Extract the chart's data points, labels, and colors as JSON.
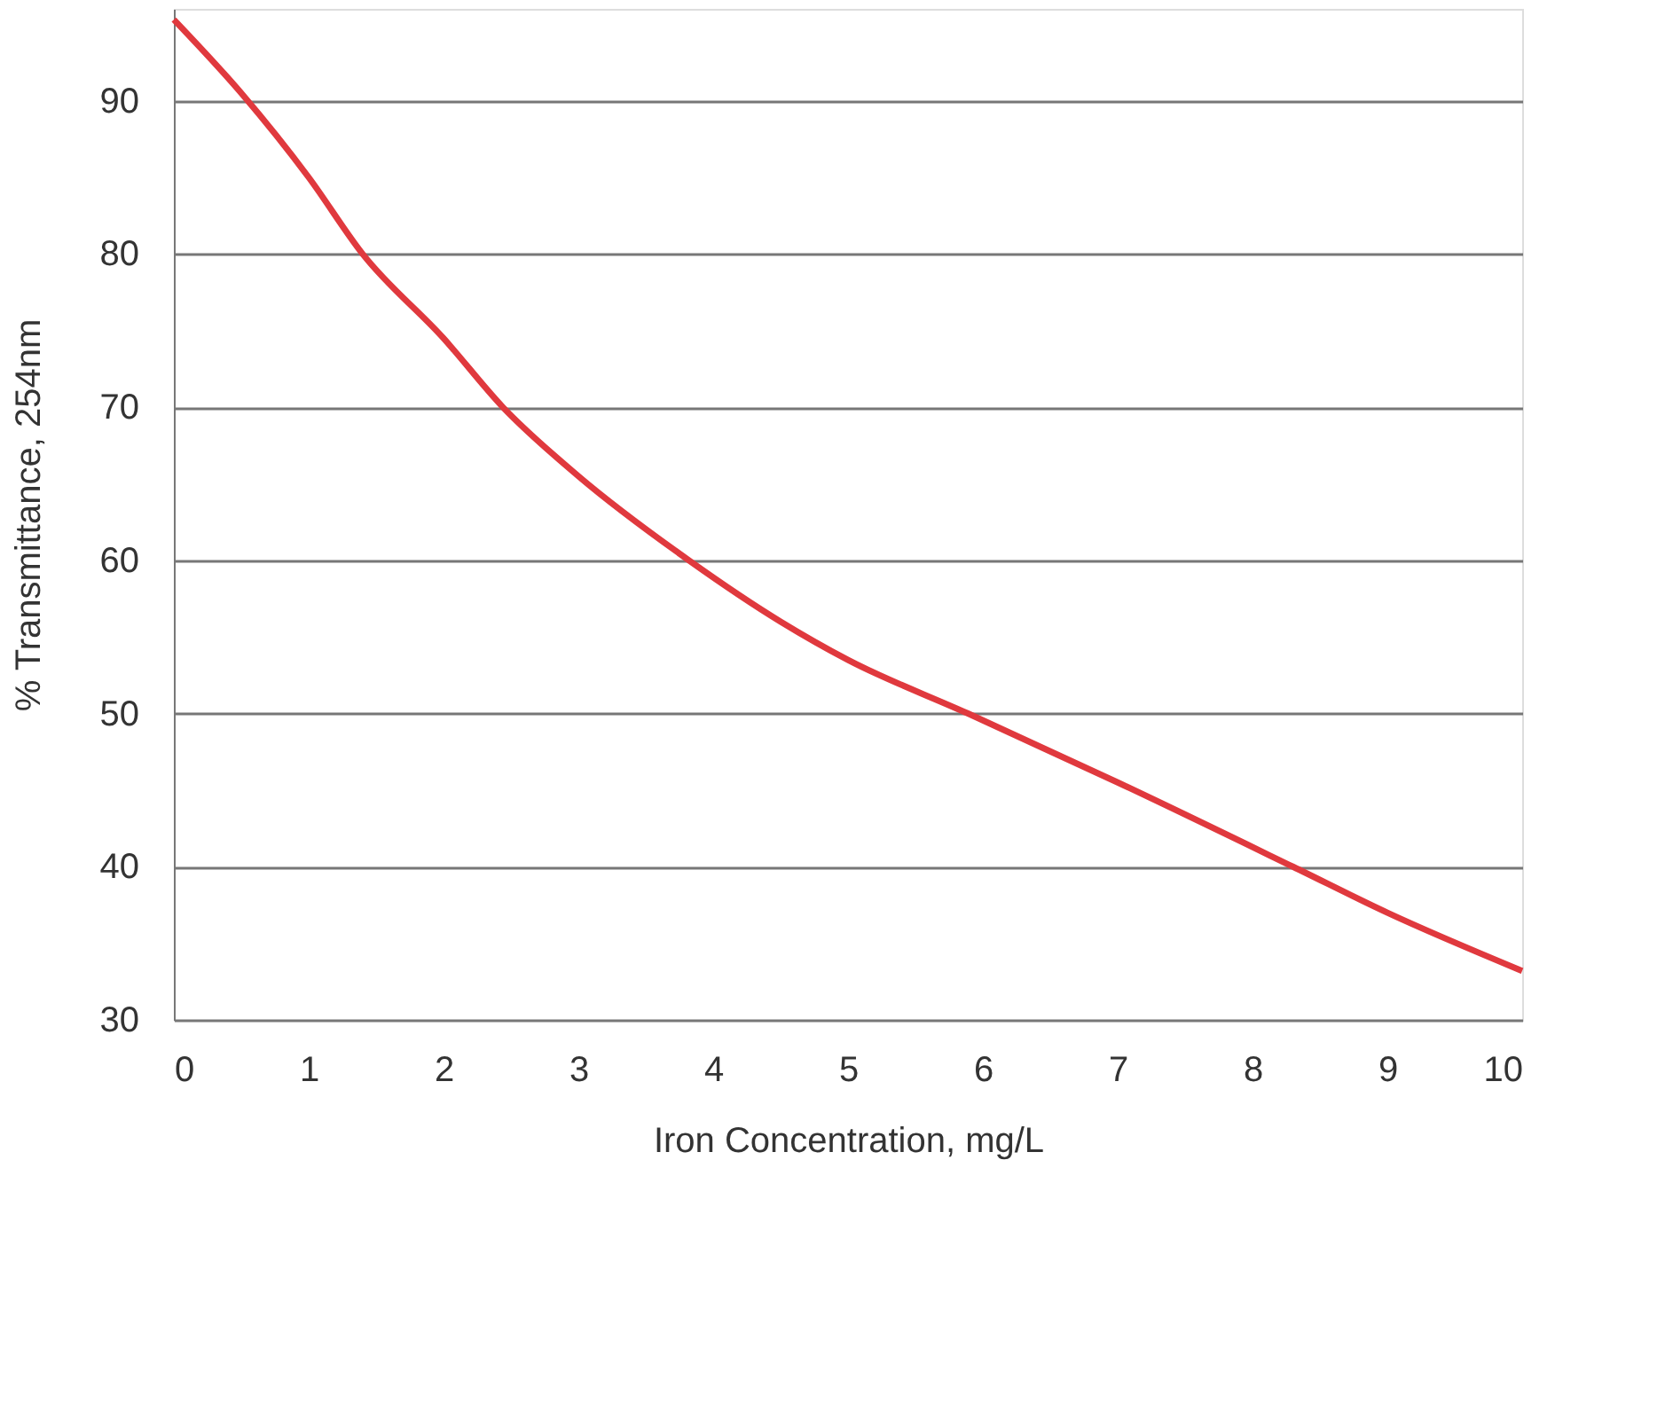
{
  "chart_data": {
    "type": "line",
    "xlabel": "Iron Concentration, mg/L",
    "ylabel": "% Transmittance, 254nm",
    "x": [
      0,
      0.5,
      1,
      1.4,
      2,
      2.44,
      3,
      3.82,
      4.5,
      5,
      5.89,
      7,
      8.3,
      9,
      10
    ],
    "series": [
      {
        "color": "#e0393e",
        "values": [
          95.3,
          90.5,
          85,
          80,
          74.5,
          70,
          65.5,
          60,
          56,
          53.5,
          50,
          45.5,
          40,
          37,
          33.2
        ]
      }
    ],
    "xlim": [
      0,
      10
    ],
    "xticks": [
      0,
      1,
      2,
      3,
      4,
      5,
      6,
      7,
      8,
      9,
      10
    ],
    "ylim": [
      30,
      96
    ],
    "yticks": [
      30,
      40,
      50,
      60,
      70,
      80,
      90
    ],
    "grid": "y",
    "legend": false,
    "marker": "none",
    "line_style": "solid"
  }
}
